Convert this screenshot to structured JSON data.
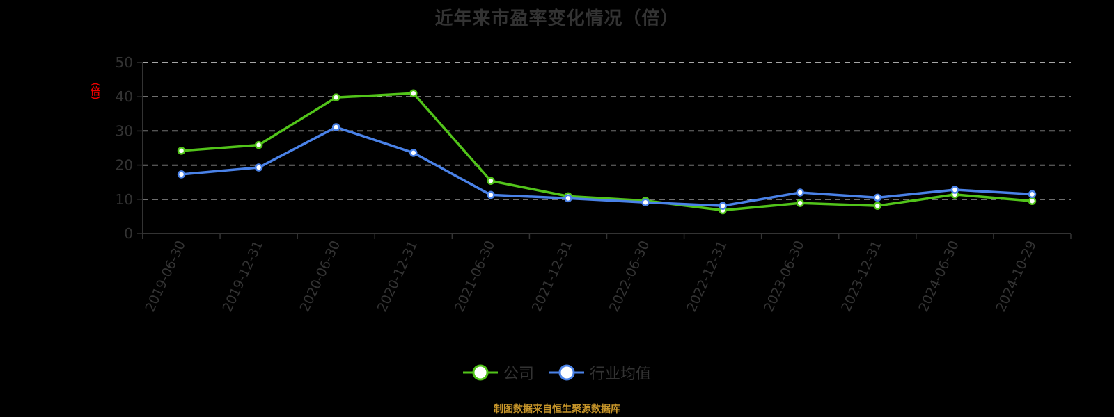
{
  "title": "近年来市盈率变化情况（倍）",
  "footer": "制图数据来自恒生聚源数据库",
  "y_axis_unit": "（倍）",
  "colors": {
    "company": "#52c41a",
    "industry": "#4a82e8",
    "footer": "#c8962a",
    "ylabel": "#ee0000"
  },
  "legend": [
    {
      "label": "公司",
      "color": "#52c41a"
    },
    {
      "label": "行业均值",
      "color": "#4a82e8"
    }
  ],
  "chart_data": {
    "type": "line",
    "title": "近年来市盈率变化情况（倍）",
    "xlabel": "",
    "ylabel": "（倍）",
    "ylim": [
      0,
      50
    ],
    "yticks": [
      0,
      10,
      20,
      30,
      40,
      50
    ],
    "grid": true,
    "legend_position": "bottom",
    "categories": [
      "2019-06-30",
      "2019-12-31",
      "2020-06-30",
      "2020-12-31",
      "2021-06-30",
      "2021-12-31",
      "2022-06-30",
      "2022-12-31",
      "2023-06-30",
      "2023-12-31",
      "2024-06-30",
      "2024-10-29"
    ],
    "series": [
      {
        "name": "公司",
        "color": "#52c41a",
        "values": [
          24.2,
          25.9,
          39.8,
          41.0,
          15.4,
          10.9,
          9.6,
          6.8,
          8.9,
          8.1,
          11.4,
          9.5
        ]
      },
      {
        "name": "行业均值",
        "color": "#4a82e8",
        "values": [
          17.3,
          19.3,
          31.1,
          23.6,
          11.3,
          10.3,
          9.1,
          8.1,
          12.0,
          10.5,
          12.8,
          11.5
        ]
      }
    ]
  }
}
